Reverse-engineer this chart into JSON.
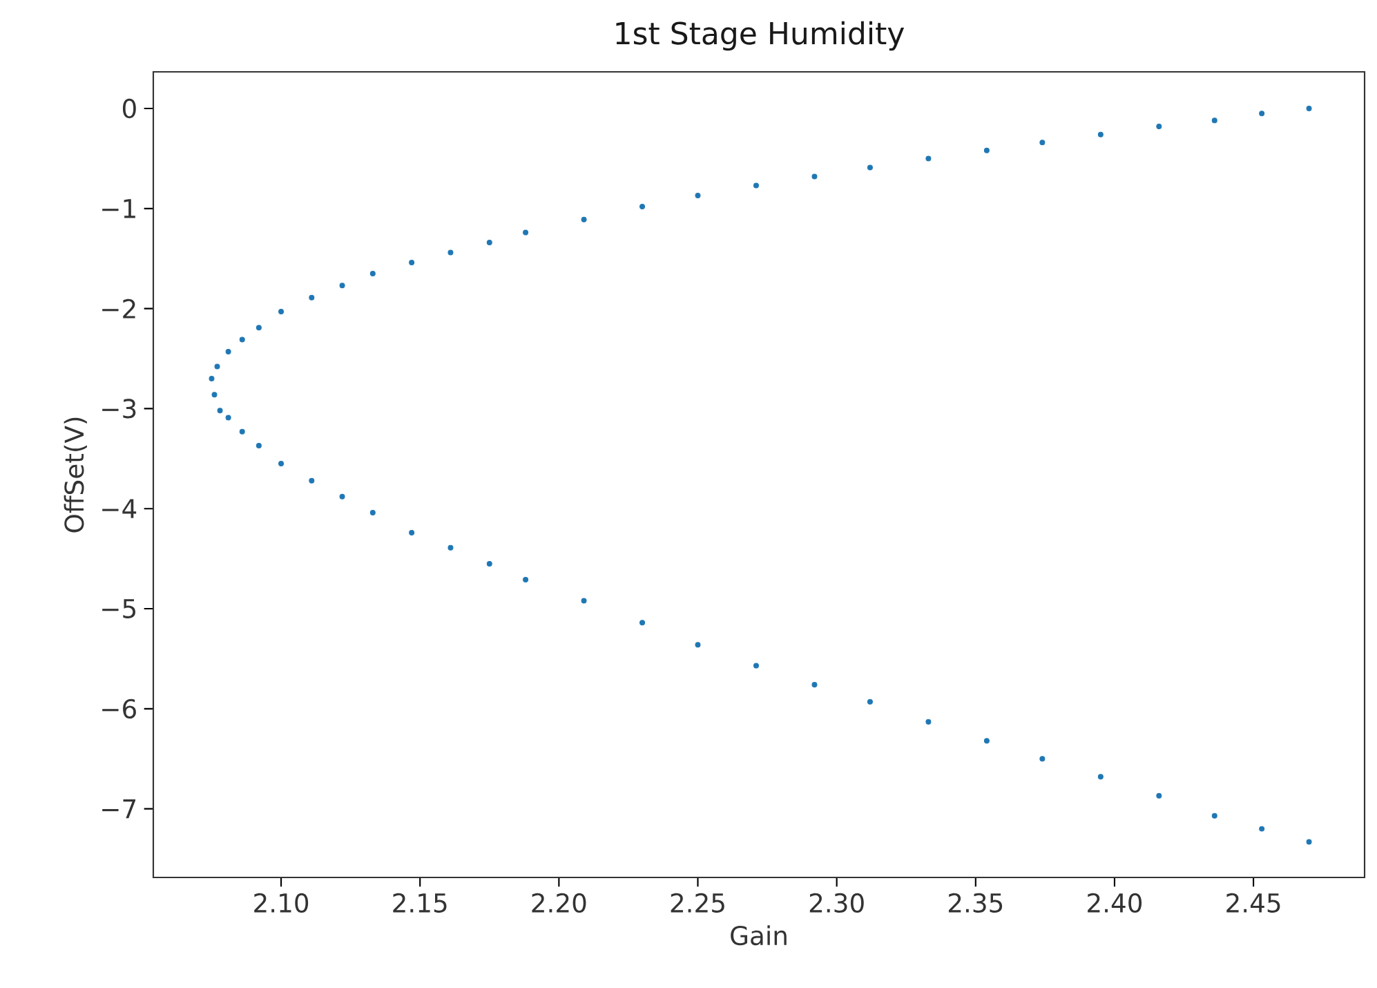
{
  "chart_data": {
    "type": "scatter",
    "title": "1st Stage Humidity",
    "xlabel": "Gain",
    "ylabel": "OffSet(V)",
    "x": [
      2.47,
      2.453,
      2.436,
      2.416,
      2.395,
      2.374,
      2.354,
      2.333,
      2.312,
      2.292,
      2.271,
      2.25,
      2.23,
      2.209,
      2.188,
      2.175,
      2.161,
      2.147,
      2.133,
      2.122,
      2.111,
      2.1,
      2.092,
      2.086,
      2.081,
      2.077,
      2.075,
      2.076,
      2.078,
      2.081,
      2.086,
      2.092,
      2.1,
      2.111,
      2.122,
      2.133,
      2.147,
      2.161,
      2.175,
      2.188,
      2.209,
      2.23,
      2.25,
      2.271,
      2.292,
      2.312,
      2.333,
      2.354,
      2.374,
      2.395,
      2.416,
      2.436,
      2.453,
      2.47
    ],
    "values": [
      0.0,
      -0.05,
      -0.12,
      -0.18,
      -0.26,
      -0.34,
      -0.42,
      -0.5,
      -0.59,
      -0.68,
      -0.77,
      -0.87,
      -0.98,
      -1.11,
      -1.24,
      -1.34,
      -1.44,
      -1.54,
      -1.65,
      -1.77,
      -1.89,
      -2.03,
      -2.19,
      -2.31,
      -2.43,
      -2.58,
      -2.7,
      -2.86,
      -3.02,
      -3.09,
      -3.23,
      -3.37,
      -3.55,
      -3.72,
      -3.88,
      -4.04,
      -4.24,
      -4.39,
      -4.55,
      -4.71,
      -4.92,
      -5.14,
      -5.36,
      -5.57,
      -5.76,
      -5.93,
      -6.13,
      -6.32,
      -6.5,
      -6.68,
      -6.87,
      -7.07,
      -7.2,
      -7.33
    ],
    "color": "#1f77b4",
    "marker": "circle",
    "xlim": [
      2.054,
      2.49
    ],
    "ylim": [
      -7.686,
      0.366
    ],
    "xticks": [
      {
        "value": 2.1,
        "label": "2.10"
      },
      {
        "value": 2.15,
        "label": "2.15"
      },
      {
        "value": 2.2,
        "label": "2.20"
      },
      {
        "value": 2.25,
        "label": "2.25"
      },
      {
        "value": 2.3,
        "label": "2.30"
      },
      {
        "value": 2.35,
        "label": "2.35"
      },
      {
        "value": 2.4,
        "label": "2.40"
      },
      {
        "value": 2.45,
        "label": "2.45"
      }
    ],
    "yticks": [
      {
        "value": 0,
        "label": "0"
      },
      {
        "value": -1,
        "label": "−1"
      },
      {
        "value": -2,
        "label": "−2"
      },
      {
        "value": -3,
        "label": "−3"
      },
      {
        "value": -4,
        "label": "−4"
      },
      {
        "value": -5,
        "label": "−5"
      },
      {
        "value": -6,
        "label": "−6"
      },
      {
        "value": -7,
        "label": "−7"
      }
    ],
    "grid": false
  }
}
